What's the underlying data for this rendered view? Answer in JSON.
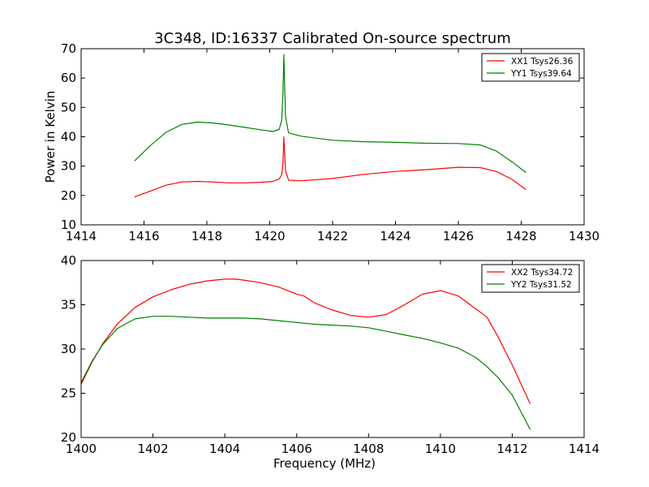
{
  "figure": {
    "title": "3C348, ID:16337 Calibrated On-source spectrum",
    "background": "#ffffff"
  },
  "colors": {
    "red": "#ff0000",
    "green": "#008000"
  },
  "chart_data": [
    {
      "type": "line",
      "xlabel": "",
      "ylabel": "Power in Kelvin",
      "xlim": [
        1414,
        1430
      ],
      "ylim": [
        10,
        70
      ],
      "xticks": [
        "1414",
        "1416",
        "1418",
        "1420",
        "1422",
        "1424",
        "1426",
        "1428",
        "1430"
      ],
      "yticks": [
        "10",
        "20",
        "30",
        "40",
        "50",
        "60",
        "70"
      ],
      "grid": false,
      "legend": "top-right",
      "series": [
        {
          "name": "XX1 Tsys26.36",
          "color": "#ff0000",
          "x": [
            1415.7,
            1416.2,
            1416.7,
            1417.2,
            1417.7,
            1418.2,
            1418.7,
            1419.2,
            1419.7,
            1420.1,
            1420.3,
            1420.38,
            1420.42,
            1420.45,
            1420.5,
            1420.6,
            1421.0,
            1422.0,
            1423.0,
            1424.0,
            1425.0,
            1426.0,
            1426.7,
            1427.2,
            1427.7,
            1428.15
          ],
          "y": [
            19.5,
            21.5,
            23.5,
            24.6,
            24.8,
            24.6,
            24.3,
            24.3,
            24.5,
            24.8,
            25.6,
            27.0,
            31.0,
            40.0,
            28.5,
            25.2,
            25.0,
            25.8,
            27.2,
            28.2,
            28.8,
            29.6,
            29.5,
            28.2,
            25.5,
            22.0
          ]
        },
        {
          "name": "YY1 Tsys39.64",
          "color": "#008000",
          "x": [
            1415.7,
            1416.2,
            1416.7,
            1417.2,
            1417.7,
            1418.2,
            1418.7,
            1419.2,
            1419.7,
            1420.1,
            1420.3,
            1420.38,
            1420.42,
            1420.45,
            1420.5,
            1420.6,
            1421.0,
            1422.0,
            1423.0,
            1424.0,
            1425.0,
            1426.0,
            1426.7,
            1427.2,
            1427.7,
            1428.15
          ],
          "y": [
            31.8,
            37.0,
            41.5,
            44.2,
            45.0,
            44.7,
            44.0,
            43.2,
            42.4,
            41.8,
            42.5,
            45.5,
            55.0,
            68.0,
            47.0,
            41.3,
            40.2,
            38.8,
            38.3,
            38.1,
            37.8,
            37.7,
            37.2,
            35.2,
            31.5,
            27.8
          ]
        }
      ]
    },
    {
      "type": "line",
      "xlabel": "Frequency (MHz)",
      "ylabel": "",
      "xlim": [
        1400,
        1414
      ],
      "ylim": [
        20,
        40
      ],
      "xticks": [
        "1400",
        "1402",
        "1404",
        "1406",
        "1408",
        "1410",
        "1412",
        "1414"
      ],
      "yticks": [
        "20",
        "25",
        "30",
        "35",
        "40"
      ],
      "grid": false,
      "legend": "top-right",
      "series": [
        {
          "name": "XX2 Tsys34.72",
          "color": "#ff0000",
          "x": [
            1400.0,
            1400.3,
            1400.6,
            1401.0,
            1401.5,
            1402.0,
            1402.5,
            1403.0,
            1403.5,
            1404.0,
            1404.3,
            1404.5,
            1405.0,
            1405.5,
            1406.0,
            1406.2,
            1406.5,
            1407.0,
            1407.5,
            1408.0,
            1408.5,
            1409.0,
            1409.5,
            1410.0,
            1410.5,
            1411.0,
            1411.3,
            1411.6,
            1412.0,
            1412.5
          ],
          "y": [
            26.0,
            28.5,
            30.6,
            32.8,
            34.7,
            35.9,
            36.7,
            37.3,
            37.7,
            37.9,
            37.9,
            37.8,
            37.5,
            37.0,
            36.2,
            36.0,
            35.2,
            34.4,
            33.8,
            33.6,
            33.9,
            35.0,
            36.2,
            36.6,
            36.0,
            34.5,
            33.6,
            31.4,
            28.2,
            23.8
          ]
        },
        {
          "name": "YY2 Tsys31.52",
          "color": "#008000",
          "x": [
            1400.0,
            1400.3,
            1400.6,
            1401.0,
            1401.5,
            1402.0,
            1402.5,
            1403.0,
            1403.5,
            1404.0,
            1404.5,
            1405.0,
            1405.5,
            1406.0,
            1406.5,
            1407.0,
            1407.5,
            1408.0,
            1408.5,
            1409.0,
            1409.5,
            1410.0,
            1410.5,
            1411.0,
            1411.3,
            1411.6,
            1412.0,
            1412.5
          ],
          "y": [
            26.2,
            28.6,
            30.5,
            32.3,
            33.4,
            33.7,
            33.7,
            33.6,
            33.5,
            33.5,
            33.5,
            33.4,
            33.2,
            33.0,
            32.8,
            32.7,
            32.6,
            32.4,
            32.0,
            31.6,
            31.2,
            30.7,
            30.1,
            29.0,
            28.0,
            26.8,
            24.8,
            20.9
          ]
        }
      ]
    }
  ]
}
